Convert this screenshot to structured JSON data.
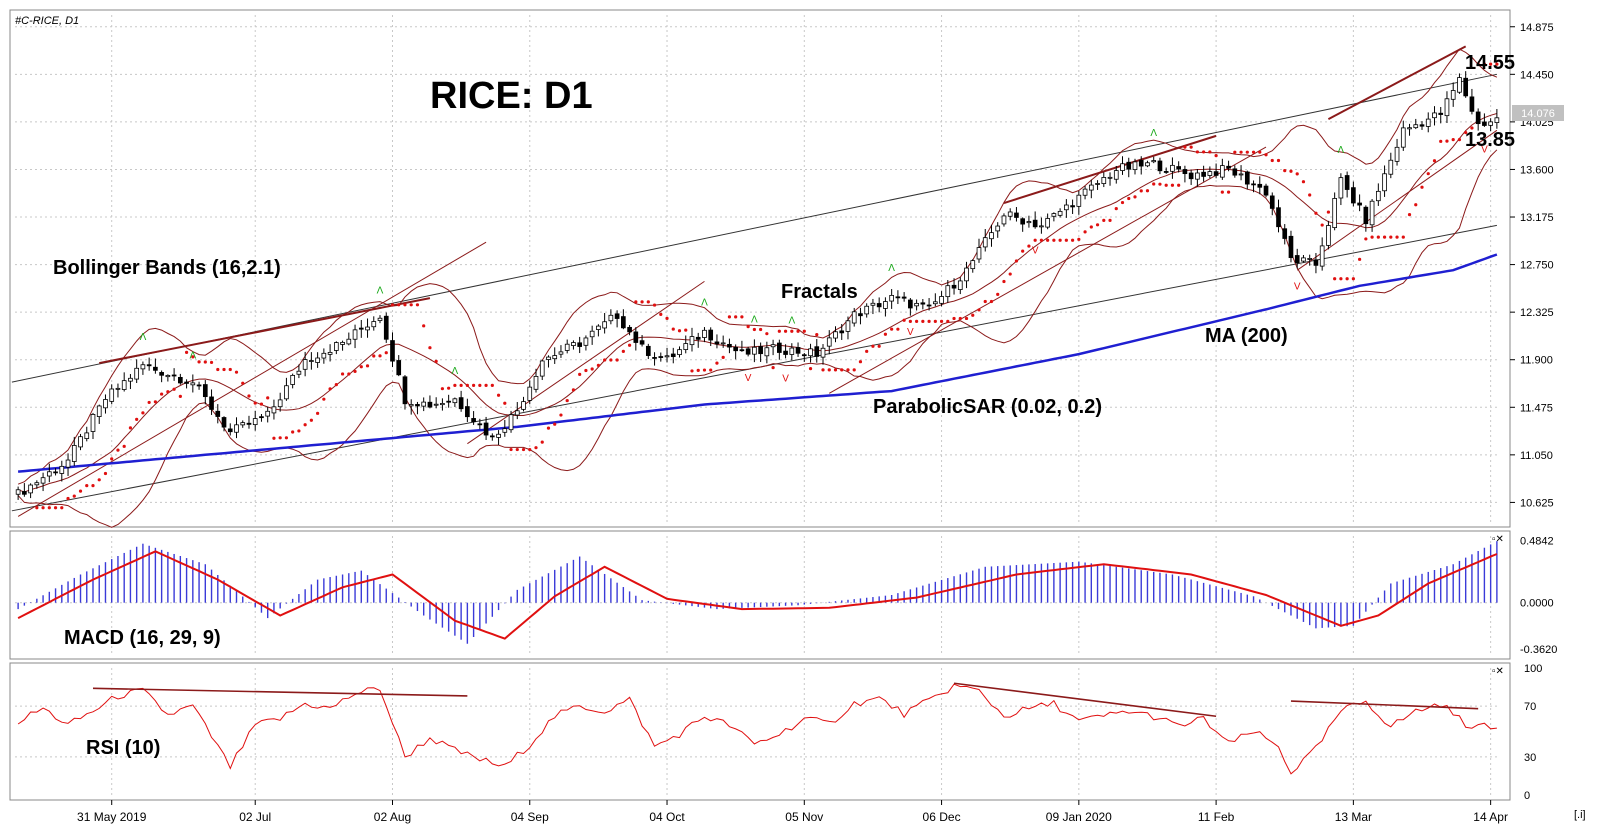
{
  "chart_data": {
    "type": "candlestick",
    "symbol_label": "#C-RICE, D1",
    "title": "RICE: D1",
    "current_price": "14.076",
    "levels": {
      "resistance": "14.55",
      "support": "13.85"
    },
    "annotations": {
      "bollinger": "Bollinger Bands (16,2.1)",
      "fractals": "Fractals",
      "parabolic": "ParabolicSAR (0.02, 0.2)",
      "ma": "MA (200)",
      "macd": "MACD (16, 29, 9)",
      "rsi": "RSI (10)"
    },
    "price_axis": {
      "ylim": [
        10.45,
        14.98
      ],
      "ticks": [
        "14.875",
        "14.450",
        "14.025",
        "13.600",
        "13.175",
        "12.750",
        "12.325",
        "11.900",
        "11.475",
        "11.050",
        "10.625"
      ]
    },
    "macd_axis": {
      "ylim": [
        -0.4,
        0.52
      ],
      "ticks": [
        "0.4842",
        "0.0000",
        "-0.3620"
      ]
    },
    "rsi_axis": {
      "ylim": [
        0,
        100
      ],
      "ticks": [
        "100",
        "70",
        "30",
        "0"
      ]
    },
    "time_ticks": [
      "31 May 2019",
      "02 Jul",
      "02 Aug",
      "04 Sep",
      "04 Oct",
      "05 Nov",
      "06 Dec",
      "09 Jan 2020",
      "11 Feb",
      "13 Mar",
      "14 Apr"
    ],
    "time_tick_index": [
      15,
      38,
      60,
      82,
      104,
      126,
      148,
      170,
      192,
      214,
      236
    ],
    "n_bars": 238,
    "close_anchors": [
      [
        0,
        10.7
      ],
      [
        8,
        11.0
      ],
      [
        14,
        11.55
      ],
      [
        20,
        11.85
      ],
      [
        28,
        11.7
      ],
      [
        34,
        11.25
      ],
      [
        40,
        11.4
      ],
      [
        46,
        11.9
      ],
      [
        52,
        12.05
      ],
      [
        58,
        12.3
      ],
      [
        62,
        11.55
      ],
      [
        66,
        11.5
      ],
      [
        70,
        11.55
      ],
      [
        76,
        11.2
      ],
      [
        80,
        11.45
      ],
      [
        84,
        11.9
      ],
      [
        90,
        12.05
      ],
      [
        96,
        12.3
      ],
      [
        100,
        12.0
      ],
      [
        104,
        11.9
      ],
      [
        110,
        12.15
      ],
      [
        116,
        11.95
      ],
      [
        122,
        12.0
      ],
      [
        128,
        11.95
      ],
      [
        134,
        12.3
      ],
      [
        140,
        12.45
      ],
      [
        146,
        12.35
      ],
      [
        152,
        12.7
      ],
      [
        158,
        13.2
      ],
      [
        164,
        13.1
      ],
      [
        170,
        13.35
      ],
      [
        176,
        13.6
      ],
      [
        182,
        13.65
      ],
      [
        188,
        13.55
      ],
      [
        194,
        13.6
      ],
      [
        200,
        13.4
      ],
      [
        204,
        12.8
      ],
      [
        208,
        12.75
      ],
      [
        212,
        13.5
      ],
      [
        216,
        13.15
      ],
      [
        222,
        13.95
      ],
      [
        228,
        14.1
      ],
      [
        231,
        14.4
      ],
      [
        234,
        14.0
      ],
      [
        237,
        14.05
      ]
    ],
    "ma200": [
      [
        0,
        10.9
      ],
      [
        40,
        11.1
      ],
      [
        80,
        11.3
      ],
      [
        110,
        11.5
      ],
      [
        140,
        11.62
      ],
      [
        170,
        11.95
      ],
      [
        200,
        12.35
      ],
      [
        215,
        12.56
      ],
      [
        230,
        12.7
      ],
      [
        237,
        12.84
      ]
    ],
    "macd_hist_anchors": [
      [
        0,
        -0.05
      ],
      [
        10,
        0.22
      ],
      [
        20,
        0.46
      ],
      [
        30,
        0.3
      ],
      [
        40,
        -0.12
      ],
      [
        48,
        0.18
      ],
      [
        55,
        0.25
      ],
      [
        65,
        -0.1
      ],
      [
        72,
        -0.32
      ],
      [
        80,
        0.1
      ],
      [
        90,
        0.36
      ],
      [
        100,
        0.02
      ],
      [
        112,
        -0.05
      ],
      [
        125,
        -0.02
      ],
      [
        140,
        0.06
      ],
      [
        155,
        0.28
      ],
      [
        170,
        0.32
      ],
      [
        185,
        0.22
      ],
      [
        198,
        0.05
      ],
      [
        208,
        -0.2
      ],
      [
        214,
        -0.18
      ],
      [
        220,
        0.15
      ],
      [
        230,
        0.3
      ],
      [
        237,
        0.48
      ]
    ],
    "macd_signal_anchors": [
      [
        0,
        -0.12
      ],
      [
        12,
        0.18
      ],
      [
        22,
        0.4
      ],
      [
        32,
        0.18
      ],
      [
        42,
        -0.1
      ],
      [
        52,
        0.12
      ],
      [
        60,
        0.22
      ],
      [
        70,
        -0.14
      ],
      [
        78,
        -0.28
      ],
      [
        86,
        0.05
      ],
      [
        94,
        0.28
      ],
      [
        104,
        0.03
      ],
      [
        116,
        -0.05
      ],
      [
        130,
        -0.04
      ],
      [
        144,
        0.04
      ],
      [
        160,
        0.22
      ],
      [
        174,
        0.3
      ],
      [
        188,
        0.22
      ],
      [
        200,
        0.06
      ],
      [
        212,
        -0.18
      ],
      [
        218,
        -0.1
      ],
      [
        226,
        0.15
      ],
      [
        237,
        0.38
      ]
    ],
    "rsi_anchors": [
      [
        0,
        58
      ],
      [
        4,
        68
      ],
      [
        8,
        55
      ],
      [
        12,
        66
      ],
      [
        16,
        78
      ],
      [
        20,
        82
      ],
      [
        24,
        63
      ],
      [
        28,
        70
      ],
      [
        34,
        22
      ],
      [
        38,
        55
      ],
      [
        42,
        60
      ],
      [
        46,
        72
      ],
      [
        50,
        68
      ],
      [
        54,
        80
      ],
      [
        58,
        84
      ],
      [
        62,
        30
      ],
      [
        66,
        45
      ],
      [
        70,
        35
      ],
      [
        74,
        28
      ],
      [
        78,
        22
      ],
      [
        82,
        40
      ],
      [
        86,
        62
      ],
      [
        90,
        70
      ],
      [
        94,
        66
      ],
      [
        98,
        75
      ],
      [
        102,
        38
      ],
      [
        106,
        48
      ],
      [
        110,
        62
      ],
      [
        114,
        55
      ],
      [
        118,
        40
      ],
      [
        122,
        48
      ],
      [
        126,
        60
      ],
      [
        130,
        56
      ],
      [
        134,
        72
      ],
      [
        138,
        76
      ],
      [
        142,
        64
      ],
      [
        146,
        74
      ],
      [
        150,
        86
      ],
      [
        154,
        82
      ],
      [
        158,
        62
      ],
      [
        162,
        68
      ],
      [
        166,
        72
      ],
      [
        170,
        58
      ],
      [
        174,
        62
      ],
      [
        178,
        66
      ],
      [
        182,
        62
      ],
      [
        186,
        54
      ],
      [
        190,
        60
      ],
      [
        194,
        40
      ],
      [
        198,
        50
      ],
      [
        202,
        38
      ],
      [
        204,
        18
      ],
      [
        208,
        36
      ],
      [
        212,
        66
      ],
      [
        216,
        74
      ],
      [
        220,
        54
      ],
      [
        224,
        66
      ],
      [
        228,
        72
      ],
      [
        232,
        56
      ],
      [
        237,
        52
      ]
    ]
  }
}
